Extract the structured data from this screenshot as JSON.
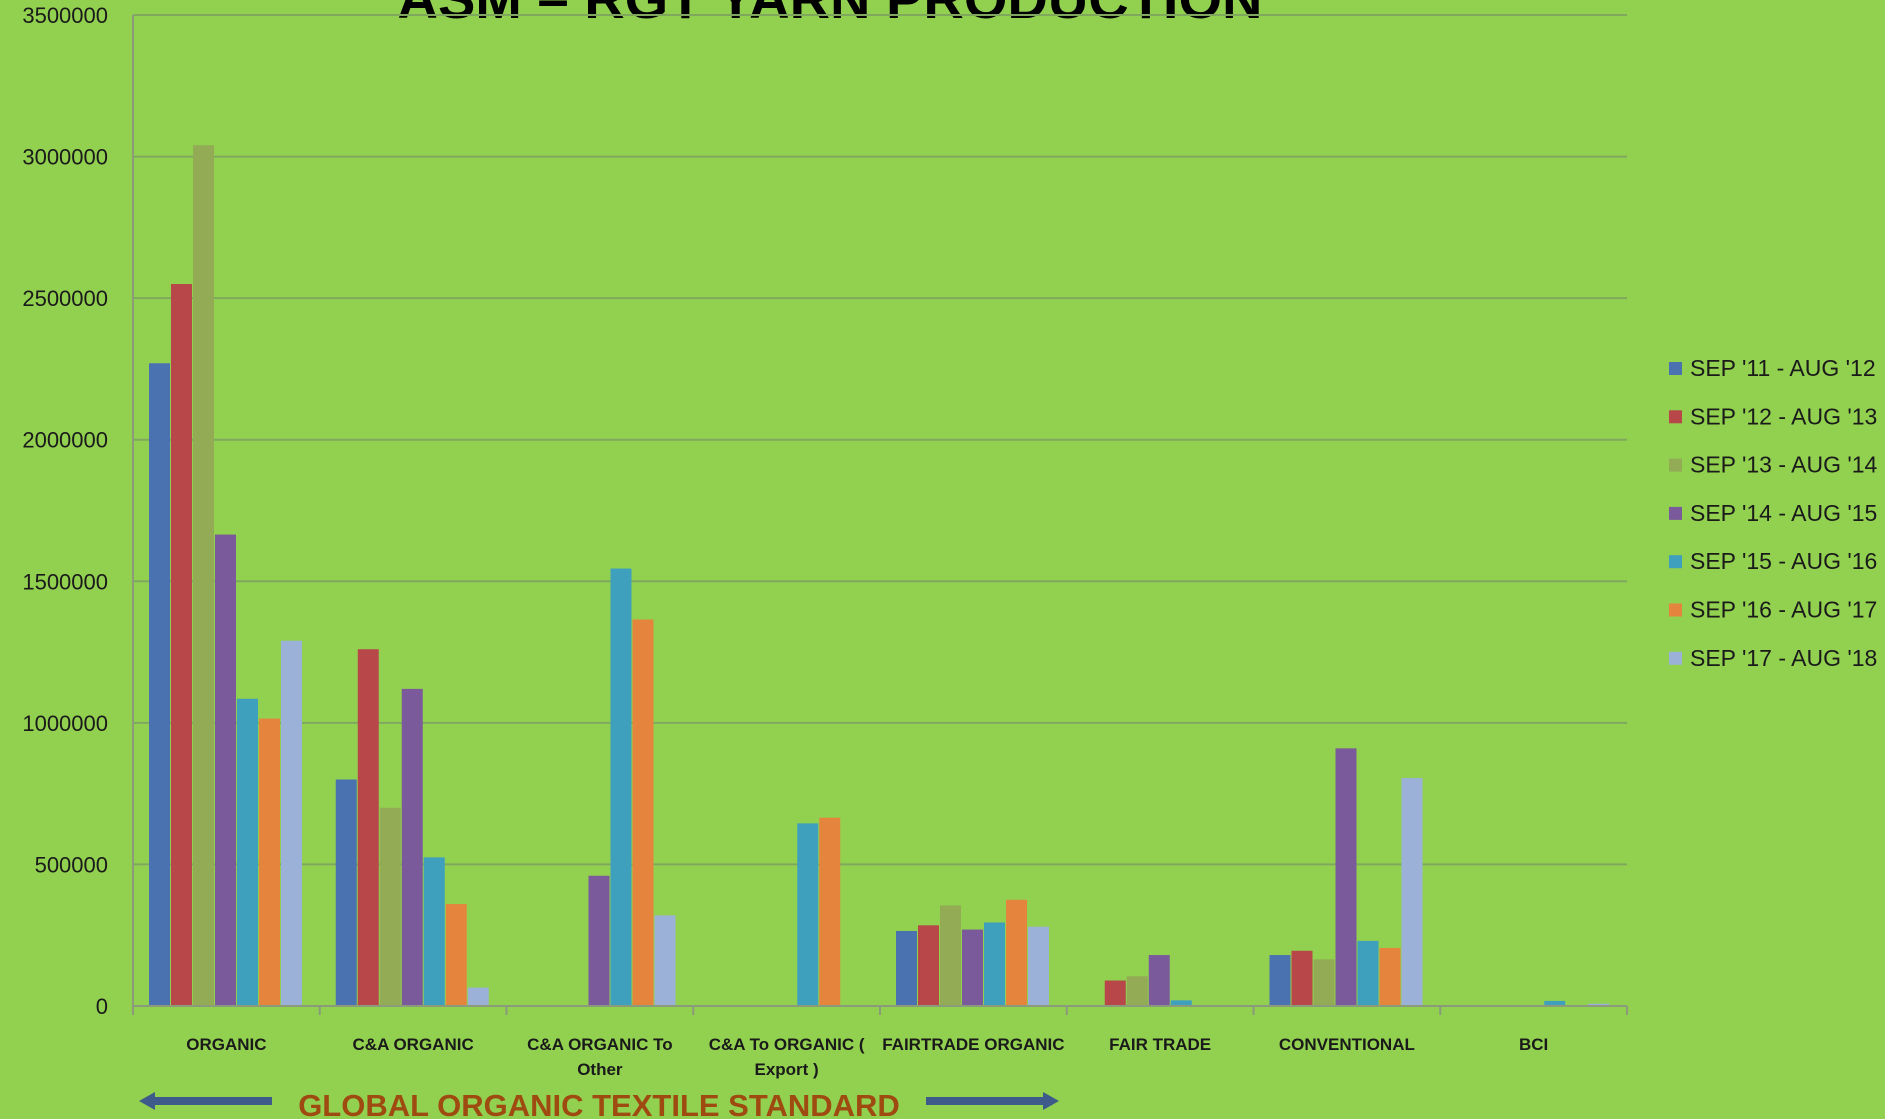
{
  "chart_data": {
    "type": "bar",
    "title": "ASM – RGT YARN PRODUCTION",
    "xlabel": "",
    "ylabel": "",
    "ylim": [
      0,
      3500000
    ],
    "yticks": [
      "0",
      "500000",
      "1000000",
      "1500000",
      "2000000",
      "2500000",
      "3000000",
      "3500000"
    ],
    "grid": true,
    "legend_position": "right",
    "categories": [
      "ORGANIC",
      "C&A ORGANIC",
      "C&A ORGANIC To Other",
      "C&A To ORGANIC ( Export )",
      "FAIRTRADE ORGANIC",
      "FAIR TRADE",
      "CONVENTIONAL",
      "BCI"
    ],
    "series": [
      {
        "name": "SEP '11 - AUG '12",
        "color": "#4a72b0",
        "values": [
          2270000,
          800000,
          0,
          0,
          265000,
          0,
          180000,
          0
        ]
      },
      {
        "name": "SEP '12 - AUG '13",
        "color": "#b8474a",
        "values": [
          2550000,
          1260000,
          0,
          0,
          285000,
          90000,
          195000,
          0
        ]
      },
      {
        "name": "SEP '13 - AUG '14",
        "color": "#93ab55",
        "values": [
          3040000,
          700000,
          0,
          0,
          355000,
          105000,
          165000,
          0
        ]
      },
      {
        "name": "SEP '14 - AUG '15",
        "color": "#7a5a9a",
        "values": [
          1665000,
          1120000,
          460000,
          0,
          270000,
          180000,
          910000,
          0
        ]
      },
      {
        "name": "SEP '15 - AUG '16",
        "color": "#3fa0bd",
        "values": [
          1085000,
          525000,
          1545000,
          645000,
          295000,
          20000,
          230000,
          18000
        ]
      },
      {
        "name": "SEP '16 - AUG '17",
        "color": "#e5853d",
        "values": [
          1015000,
          360000,
          1365000,
          665000,
          375000,
          0,
          205000,
          0
        ]
      },
      {
        "name": "SEP '17 - AUG '18",
        "color": "#9cb1d8",
        "values": [
          1290000,
          65000,
          320000,
          0,
          280000,
          0,
          805000,
          8000
        ]
      }
    ],
    "annotation": {
      "text": "GLOBAL ORGANIC TEXTILE STANDARD",
      "text_color": "#9e4a10",
      "arrow_color": "#3d5a8a",
      "spans_categories": [
        "ORGANIC",
        "FAIRTRADE ORGANIC"
      ]
    },
    "gridline_color": "#7fa85e",
    "axis_color": "#8a9a7a"
  }
}
